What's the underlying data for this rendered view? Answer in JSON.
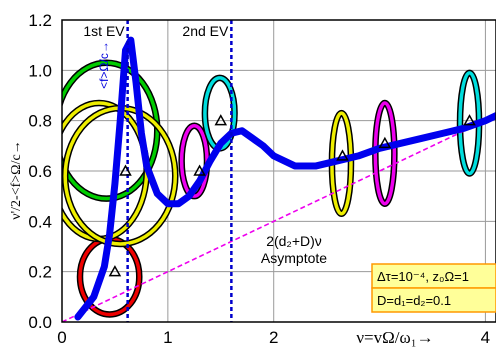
{
  "chart_data": {
    "type": "line",
    "ylabel": "ν'/2-<f>Ω/c→",
    "xlabel": "ν=vΩ/ω₁→",
    "xlim": [
      0,
      4.1
    ],
    "ylim": [
      0,
      1.2
    ],
    "x_ticks": [
      "0",
      "1",
      "2",
      "4"
    ],
    "y_ticks": [
      "0.0",
      "0.2",
      "0.4",
      "0.6",
      "0.8",
      "1.0",
      "1.2"
    ],
    "grid": true,
    "colors": {
      "curve": "#0000ee",
      "asymptote": "#ee00ee",
      "ev_line": "#0000cc",
      "box_fill": "#ffff99",
      "box_border": "#ff9900"
    },
    "series": [
      {
        "name": "<f>Ω/c→",
        "x": [
          0.15,
          0.3,
          0.4,
          0.45,
          0.5,
          0.55,
          0.6,
          0.65,
          0.7,
          0.75,
          0.8,
          0.9,
          1.0,
          1.1,
          1.2,
          1.3,
          1.4,
          1.5,
          1.6,
          1.7,
          1.8,
          1.9,
          2.0,
          2.2,
          2.4,
          2.6,
          2.8,
          3.0,
          3.2,
          3.4,
          3.6,
          3.8,
          4.0,
          4.1
        ],
        "y": [
          0.02,
          0.1,
          0.22,
          0.35,
          0.55,
          0.8,
          1.08,
          1.12,
          0.95,
          0.75,
          0.62,
          0.51,
          0.47,
          0.47,
          0.5,
          0.56,
          0.64,
          0.71,
          0.75,
          0.76,
          0.73,
          0.7,
          0.66,
          0.62,
          0.62,
          0.64,
          0.66,
          0.69,
          0.71,
          0.73,
          0.75,
          0.77,
          0.8,
          0.82
        ]
      },
      {
        "name": "2(d₂+D)ν Asymptote",
        "x": [
          0,
          4.1
        ],
        "y": [
          0,
          0.82
        ]
      }
    ],
    "markers": [
      {
        "x": 0.5,
        "y": 0.2
      },
      {
        "x": 0.6,
        "y": 0.6
      },
      {
        "x": 1.3,
        "y": 0.6
      },
      {
        "x": 1.5,
        "y": 0.8
      },
      {
        "x": 2.65,
        "y": 0.66
      },
      {
        "x": 3.05,
        "y": 0.71
      },
      {
        "x": 3.85,
        "y": 0.8
      }
    ],
    "ellipses": [
      {
        "x": 0.45,
        "y": 0.18,
        "rx": 0.28,
        "ry": 0.15,
        "color": "#ee0000"
      },
      {
        "x": 0.42,
        "y": 0.76,
        "rx": 0.48,
        "ry": 0.27,
        "color": "#00cc00"
      },
      {
        "x": 0.35,
        "y": 0.6,
        "rx": 0.45,
        "ry": 0.27,
        "color": "#eeee00"
      },
      {
        "x": 0.55,
        "y": 0.58,
        "rx": 0.52,
        "ry": 0.27,
        "color": "#eeee00"
      },
      {
        "x": 1.25,
        "y": 0.64,
        "rx": 0.12,
        "ry": 0.14,
        "color": "#ee00ee"
      },
      {
        "x": 1.49,
        "y": 0.83,
        "rx": 0.14,
        "ry": 0.14,
        "color": "#00dddd"
      },
      {
        "x": 2.64,
        "y": 0.63,
        "rx": 0.09,
        "ry": 0.2,
        "color": "#eeee00"
      },
      {
        "x": 3.05,
        "y": 0.67,
        "rx": 0.09,
        "ry": 0.2,
        "color": "#ee00ee"
      },
      {
        "x": 3.85,
        "y": 0.79,
        "rx": 0.09,
        "ry": 0.2,
        "color": "#00dddd"
      }
    ],
    "vlines": [
      {
        "x": 0.62,
        "label": "1st EV"
      },
      {
        "x": 1.6,
        "label": "2nd EV"
      }
    ],
    "curve_label": "<f>Ω/c→",
    "annotation": {
      "line1": "2(d₂+D)ν",
      "line2": "Asymptote"
    },
    "params_box": {
      "line1": "Δτ=10⁻⁴, z₀Ω=1",
      "line2": "D=d₁=d₂=0.1"
    }
  }
}
